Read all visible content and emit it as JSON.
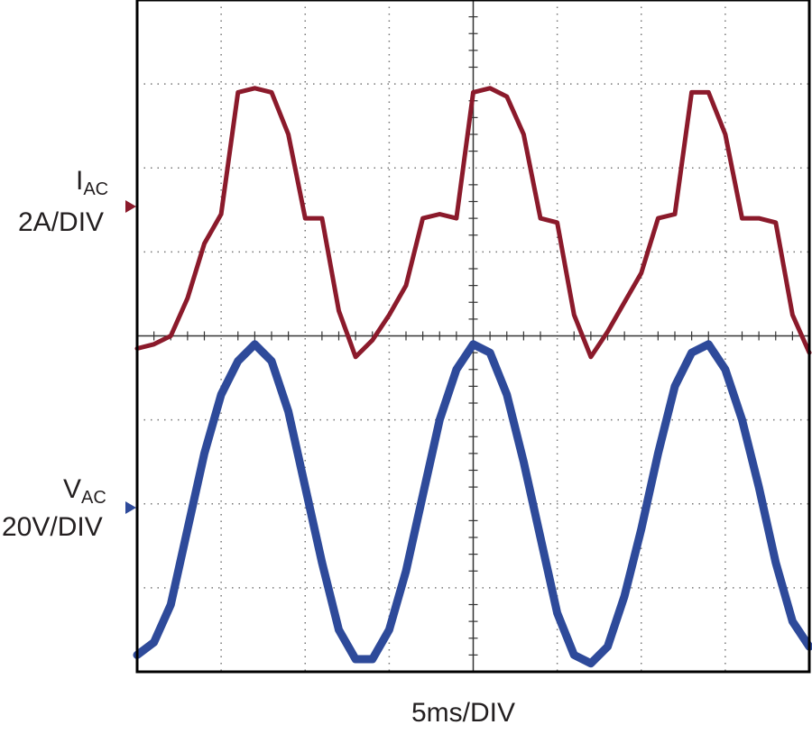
{
  "chart_data": {
    "type": "line",
    "xlabel": "5ms/DIV",
    "x_divisions": 8,
    "y_divisions": 8,
    "grid": true,
    "x_unit": "ms",
    "x_per_div": 5,
    "x": [
      0,
      1,
      2,
      3,
      4,
      5,
      6,
      7,
      8,
      9,
      10,
      11,
      12,
      13,
      14,
      15,
      16,
      17,
      18,
      19,
      20,
      21,
      22,
      23,
      24,
      25,
      26,
      27,
      28,
      29,
      30,
      31,
      32,
      33,
      34,
      35,
      36,
      37,
      38,
      39,
      40
    ],
    "series": [
      {
        "name_main": "I",
        "name_sub": "AC",
        "scale": "2A/DIV",
        "unit": "A",
        "color": "#8b1a2b",
        "offset_div": 0,
        "values": [
          -0.3,
          -0.2,
          0.0,
          0.9,
          2.2,
          2.9,
          5.8,
          5.9,
          5.8,
          4.8,
          2.8,
          2.8,
          0.6,
          -0.5,
          -0.1,
          0.5,
          1.2,
          2.8,
          2.9,
          2.8,
          5.8,
          5.9,
          5.7,
          4.8,
          2.8,
          2.7,
          0.5,
          -0.5,
          0.1,
          0.8,
          1.5,
          2.8,
          2.9,
          5.8,
          5.8,
          4.8,
          2.8,
          2.8,
          2.7,
          0.5,
          -0.4
        ]
      },
      {
        "name_main": "V",
        "name_sub": "AC",
        "scale": "20V/DIV",
        "unit": "V",
        "color": "#2e4a9a",
        "offset_div": -2,
        "values": [
          -36,
          -33,
          -24,
          -6,
          12,
          26,
          34,
          38,
          34,
          22,
          4,
          -14,
          -30,
          -37,
          -37,
          -30,
          -16,
          2,
          20,
          32,
          38,
          36,
          26,
          10,
          -8,
          -26,
          -36,
          -38,
          -34,
          -22,
          -6,
          12,
          28,
          36,
          38,
          32,
          20,
          4,
          -14,
          -28,
          -34
        ]
      }
    ]
  }
}
